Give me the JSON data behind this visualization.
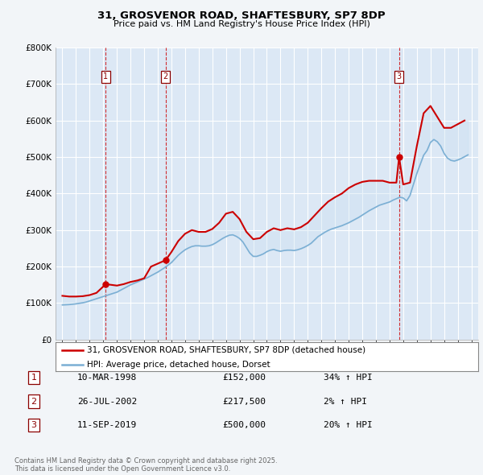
{
  "title": "31, GROSVENOR ROAD, SHAFTESBURY, SP7 8DP",
  "subtitle": "Price paid vs. HM Land Registry's House Price Index (HPI)",
  "ylim": [
    0,
    800000
  ],
  "yticks": [
    0,
    100000,
    200000,
    300000,
    400000,
    500000,
    600000,
    700000,
    800000
  ],
  "ytick_labels": [
    "£0",
    "£100K",
    "£200K",
    "£300K",
    "£400K",
    "£500K",
    "£600K",
    "£700K",
    "£800K"
  ],
  "hpi_color": "#7bafd4",
  "price_color": "#cc0000",
  "vline_color": "#cc0000",
  "fill_color": "#c8dff0",
  "background_color": "#f2f5f8",
  "plot_bg_color": "#dce8f5",
  "legend_label_price": "31, GROSVENOR ROAD, SHAFTESBURY, SP7 8DP (detached house)",
  "legend_label_hpi": "HPI: Average price, detached house, Dorset",
  "transactions": [
    {
      "num": 1,
      "date_label": "10-MAR-1998",
      "price_label": "£152,000",
      "pct_label": "34% ↑ HPI",
      "year": 1998.19,
      "price": 152000
    },
    {
      "num": 2,
      "date_label": "26-JUL-2002",
      "price_label": "£217,500",
      "pct_label": "2% ↑ HPI",
      "year": 2002.57,
      "price": 217500
    },
    {
      "num": 3,
      "date_label": "11-SEP-2019",
      "price_label": "£500,000",
      "pct_label": "20% ↑ HPI",
      "year": 2019.7,
      "price": 500000
    }
  ],
  "footer_line1": "Contains HM Land Registry data © Crown copyright and database right 2025.",
  "footer_line2": "This data is licensed under the Open Government Licence v3.0.",
  "xlim_start": 1994.5,
  "xlim_end": 2025.5,
  "hpi_data_x": [
    1995.0,
    1995.25,
    1995.5,
    1995.75,
    1996.0,
    1996.25,
    1996.5,
    1996.75,
    1997.0,
    1997.25,
    1997.5,
    1997.75,
    1998.0,
    1998.25,
    1998.5,
    1998.75,
    1999.0,
    1999.25,
    1999.5,
    1999.75,
    2000.0,
    2000.25,
    2000.5,
    2000.75,
    2001.0,
    2001.25,
    2001.5,
    2001.75,
    2002.0,
    2002.25,
    2002.5,
    2002.75,
    2003.0,
    2003.25,
    2003.5,
    2003.75,
    2004.0,
    2004.25,
    2004.5,
    2004.75,
    2005.0,
    2005.25,
    2005.5,
    2005.75,
    2006.0,
    2006.25,
    2006.5,
    2006.75,
    2007.0,
    2007.25,
    2007.5,
    2007.75,
    2008.0,
    2008.25,
    2008.5,
    2008.75,
    2009.0,
    2009.25,
    2009.5,
    2009.75,
    2010.0,
    2010.25,
    2010.5,
    2010.75,
    2011.0,
    2011.25,
    2011.5,
    2011.75,
    2012.0,
    2012.25,
    2012.5,
    2012.75,
    2013.0,
    2013.25,
    2013.5,
    2013.75,
    2014.0,
    2014.25,
    2014.5,
    2014.75,
    2015.0,
    2015.25,
    2015.5,
    2015.75,
    2016.0,
    2016.25,
    2016.5,
    2016.75,
    2017.0,
    2017.25,
    2017.5,
    2017.75,
    2018.0,
    2018.25,
    2018.5,
    2018.75,
    2019.0,
    2019.25,
    2019.5,
    2019.75,
    2020.0,
    2020.25,
    2020.5,
    2020.75,
    2021.0,
    2021.25,
    2021.5,
    2021.75,
    2022.0,
    2022.25,
    2022.5,
    2022.75,
    2023.0,
    2023.25,
    2023.5,
    2023.75,
    2024.0,
    2024.25,
    2024.5,
    2024.75
  ],
  "hpi_data_y": [
    95000,
    95500,
    96000,
    97000,
    98000,
    99500,
    101000,
    103000,
    106000,
    109000,
    112000,
    115000,
    118000,
    121000,
    124000,
    127000,
    130000,
    135000,
    140000,
    145000,
    150000,
    154000,
    158000,
    162000,
    166000,
    170000,
    175000,
    180000,
    185000,
    191000,
    197000,
    204000,
    211000,
    221000,
    231000,
    239000,
    246000,
    251000,
    255000,
    257000,
    257000,
    256000,
    256000,
    257000,
    260000,
    265000,
    271000,
    277000,
    282000,
    286000,
    287000,
    283000,
    277000,
    267000,
    252000,
    237000,
    228000,
    228000,
    231000,
    235000,
    241000,
    245000,
    247000,
    244000,
    242000,
    244000,
    245000,
    245000,
    244000,
    246000,
    249000,
    253000,
    258000,
    264000,
    273000,
    282000,
    288000,
    294000,
    299000,
    303000,
    306000,
    309000,
    312000,
    316000,
    320000,
    325000,
    330000,
    335000,
    341000,
    347000,
    353000,
    358000,
    363000,
    368000,
    371000,
    374000,
    377000,
    382000,
    386000,
    390000,
    388000,
    380000,
    395000,
    425000,
    455000,
    480000,
    505000,
    518000,
    540000,
    548000,
    542000,
    530000,
    510000,
    497000,
    491000,
    489000,
    492000,
    496000,
    501000,
    506000
  ],
  "price_data_x": [
    1995.0,
    1995.5,
    1996.0,
    1996.5,
    1997.0,
    1997.5,
    1998.19,
    1999.0,
    1999.5,
    2000.0,
    2000.5,
    2001.0,
    2001.5,
    2002.57,
    2003.0,
    2003.5,
    2004.0,
    2004.5,
    2005.0,
    2005.5,
    2006.0,
    2006.5,
    2007.0,
    2007.5,
    2008.0,
    2008.5,
    2009.0,
    2009.5,
    2010.0,
    2010.5,
    2011.0,
    2011.5,
    2012.0,
    2012.5,
    2013.0,
    2013.5,
    2014.0,
    2014.5,
    2015.0,
    2015.5,
    2016.0,
    2016.5,
    2017.0,
    2017.5,
    2018.0,
    2018.5,
    2019.0,
    2019.5,
    2019.7,
    2020.0,
    2020.5,
    2021.0,
    2021.5,
    2022.0,
    2022.5,
    2023.0,
    2023.5,
    2024.0,
    2024.5
  ],
  "price_data_y": [
    120000,
    118000,
    118000,
    119000,
    122000,
    128000,
    152000,
    148000,
    152000,
    158000,
    162000,
    168000,
    200000,
    217500,
    240000,
    270000,
    290000,
    300000,
    295000,
    295000,
    303000,
    320000,
    345000,
    350000,
    330000,
    295000,
    275000,
    278000,
    295000,
    305000,
    300000,
    305000,
    302000,
    308000,
    320000,
    340000,
    360000,
    378000,
    390000,
    400000,
    415000,
    425000,
    432000,
    435000,
    435000,
    435000,
    430000,
    430000,
    500000,
    425000,
    430000,
    530000,
    620000,
    640000,
    610000,
    580000,
    580000,
    590000,
    600000
  ]
}
